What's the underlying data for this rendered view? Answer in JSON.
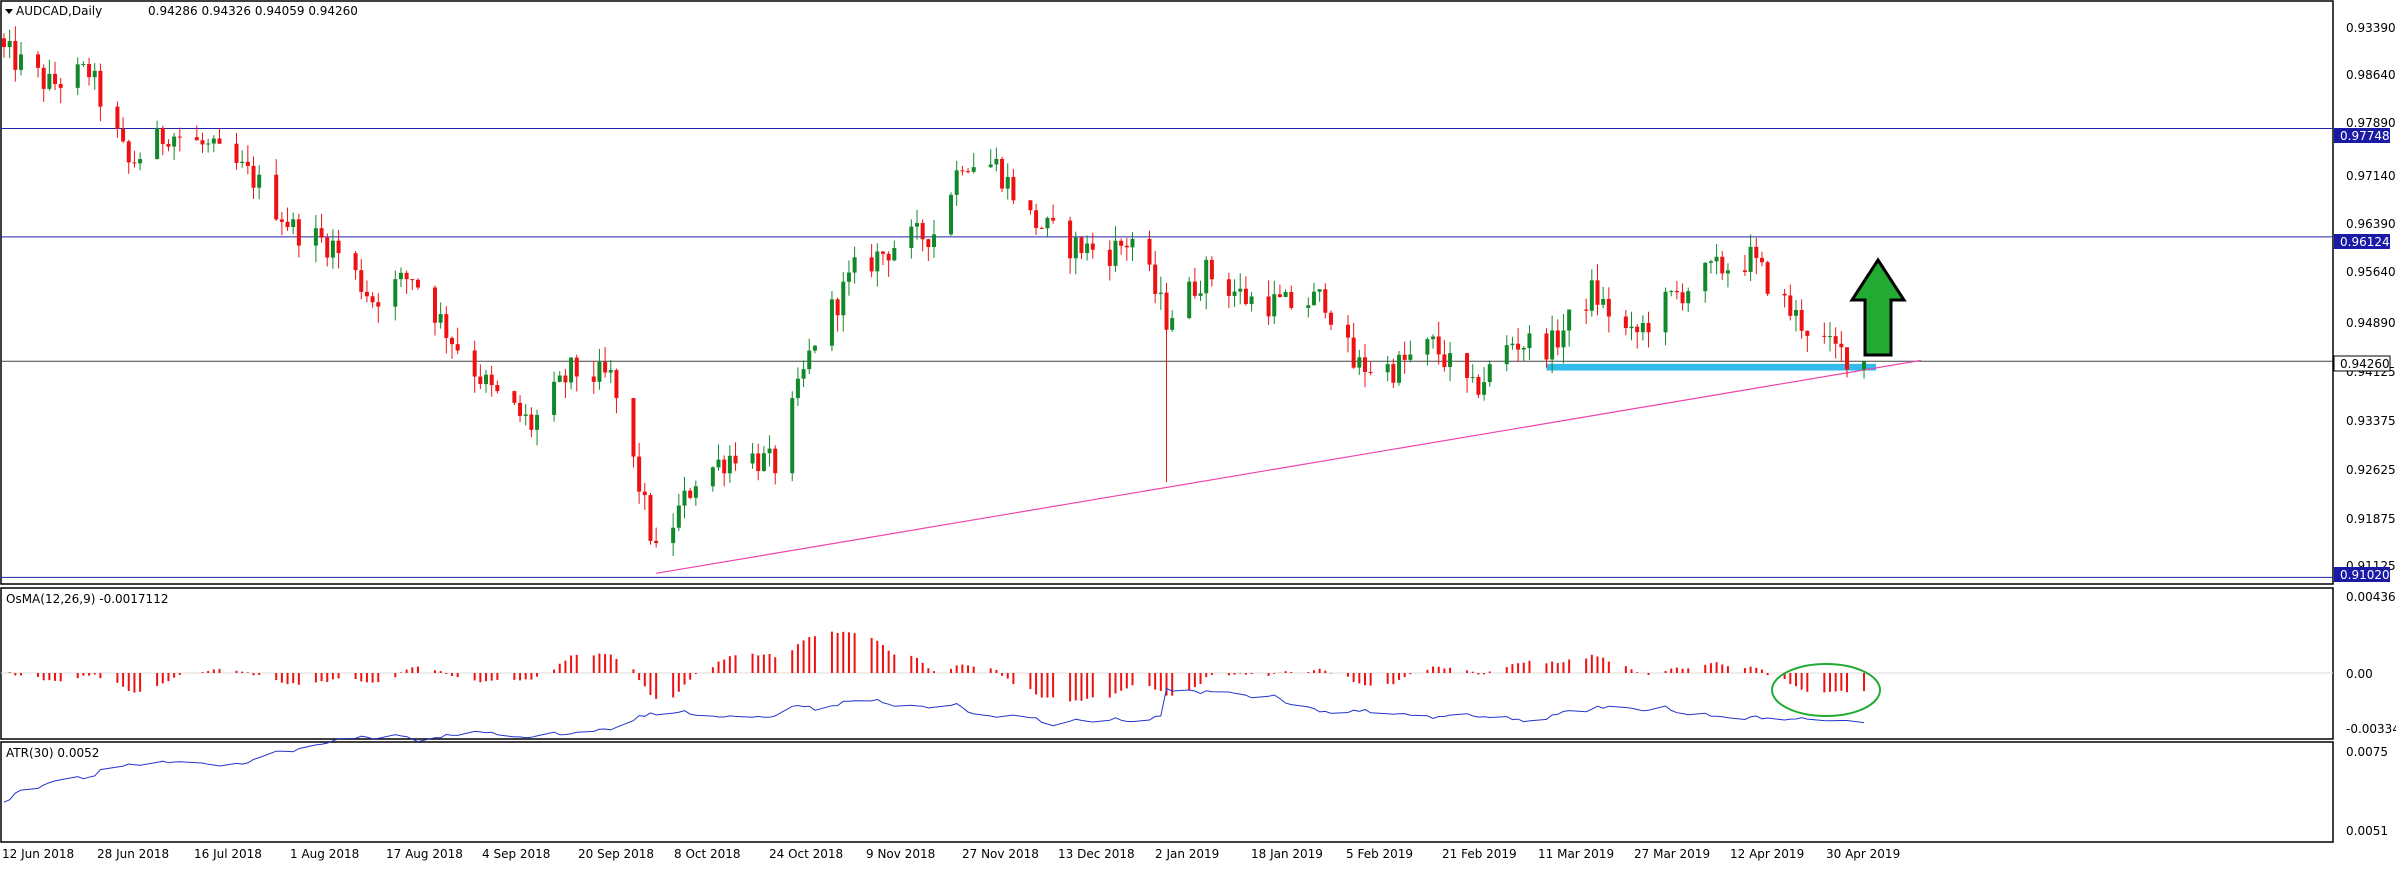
{
  "main_panel": {
    "symbol": "AUDCAD,Daily",
    "ohlc": "0.94286 0.94326 0.94059 0.94260",
    "price_ticks": [
      "0.93390",
      "0.98640",
      "0.97890",
      "0.97140",
      "0.96390",
      "0.95640",
      "0.94890",
      "0.94125",
      "0.93375",
      "0.92625",
      "0.91875",
      "0.91125"
    ],
    "levels": [
      {
        "label": "0.97748",
        "value": 0.97748,
        "color": "#2222aa"
      },
      {
        "label": "0.96124",
        "value": 0.96124,
        "color": "#2222aa"
      },
      {
        "label": "0.91020",
        "value": 0.9102,
        "color": "#2222aa"
      }
    ],
    "current_price": {
      "label": "0.94260",
      "value": 0.9426
    },
    "support_zone": {
      "from": "2019-03-11",
      "to": "2019-05-06",
      "low": 0.9412,
      "high": 0.9422,
      "color": "#33bbee"
    },
    "trendline": {
      "start": {
        "date": "2018-10-05",
        "price": 0.9108
      },
      "end": {
        "date": "2019-05-09",
        "price": 0.9428
      },
      "color": "#ee44aa"
    },
    "arrow": {
      "direction": "up",
      "color": "#22aa33"
    }
  },
  "osma_panel": {
    "label": "OsMA(12,26,9) -0.0017112",
    "ticks": [
      "0.0043631",
      "0.00",
      "-0.0033465"
    ]
  },
  "atr_panel": {
    "label": "ATR(30) 0.0052",
    "ticks": [
      "0.0075",
      "0.0051"
    ]
  },
  "x_axis": {
    "labels": [
      "12 Jun 2018",
      "28 Jun 2018",
      "16 Jul 2018",
      "1 Aug 2018",
      "17 Aug 2018",
      "4 Sep 2018",
      "20 Sep 2018",
      "8 Oct 2018",
      "24 Oct 2018",
      "9 Nov 2018",
      "27 Nov 2018",
      "13 Dec 2018",
      "2 Jan 2019",
      "18 Jan 2019",
      "5 Feb 2019",
      "21 Feb 2019",
      "11 Mar 2019",
      "27 Mar 2019",
      "12 Apr 2019",
      "30 Apr 2019"
    ]
  },
  "chart_data": {
    "type": "candlestick",
    "title": "AUDCAD,Daily",
    "ylim": [
      0.9092,
      0.9966
    ],
    "candles_close_path": [
      {
        "date": "2018-06-12",
        "close": 0.989
      },
      {
        "date": "2018-06-20",
        "close": 0.984
      },
      {
        "date": "2018-06-27",
        "close": 0.986
      },
      {
        "date": "2018-07-04",
        "close": 0.972
      },
      {
        "date": "2018-07-11",
        "close": 0.977
      },
      {
        "date": "2018-07-18",
        "close": 0.9745
      },
      {
        "date": "2018-07-26",
        "close": 0.97
      },
      {
        "date": "2018-08-02",
        "close": 0.9625
      },
      {
        "date": "2018-08-09",
        "close": 0.96
      },
      {
        "date": "2018-08-16",
        "close": 0.952
      },
      {
        "date": "2018-08-23",
        "close": 0.9555
      },
      {
        "date": "2018-08-30",
        "close": 0.946
      },
      {
        "date": "2018-09-06",
        "close": 0.938
      },
      {
        "date": "2018-09-13",
        "close": 0.933
      },
      {
        "date": "2018-09-20",
        "close": 0.941
      },
      {
        "date": "2018-09-27",
        "close": 0.94
      },
      {
        "date": "2018-10-02",
        "close": 0.924
      },
      {
        "date": "2018-10-05",
        "close": 0.9135
      },
      {
        "date": "2018-10-12",
        "close": 0.925
      },
      {
        "date": "2018-10-19",
        "close": 0.929
      },
      {
        "date": "2018-10-26",
        "close": 0.927
      },
      {
        "date": "2018-11-02",
        "close": 0.946
      },
      {
        "date": "2018-11-09",
        "close": 0.956
      },
      {
        "date": "2018-11-16",
        "close": 0.96
      },
      {
        "date": "2018-11-23",
        "close": 0.962
      },
      {
        "date": "2018-11-28",
        "close": 0.973
      },
      {
        "date": "2018-12-04",
        "close": 0.972
      },
      {
        "date": "2018-12-10",
        "close": 0.964
      },
      {
        "date": "2018-12-17",
        "close": 0.96
      },
      {
        "date": "2018-12-24",
        "close": 0.959
      },
      {
        "date": "2018-12-28",
        "close": 0.961
      },
      {
        "date": "2019-01-03",
        "close": 0.949
      },
      {
        "date": "2019-01-10",
        "close": 0.956
      },
      {
        "date": "2019-01-17",
        "close": 0.952
      },
      {
        "date": "2019-01-24",
        "close": 0.951
      },
      {
        "date": "2019-01-31",
        "close": 0.952
      },
      {
        "date": "2019-02-05",
        "close": 0.942
      },
      {
        "date": "2019-02-12",
        "close": 0.9415
      },
      {
        "date": "2019-02-19",
        "close": 0.945
      },
      {
        "date": "2019-02-26",
        "close": 0.938
      },
      {
        "date": "2019-03-05",
        "close": 0.9455
      },
      {
        "date": "2019-03-12",
        "close": 0.945
      },
      {
        "date": "2019-03-19",
        "close": 0.953
      },
      {
        "date": "2019-03-26",
        "close": 0.946
      },
      {
        "date": "2019-04-02",
        "close": 0.952
      },
      {
        "date": "2019-04-09",
        "close": 0.956
      },
      {
        "date": "2019-04-16",
        "close": 0.958
      },
      {
        "date": "2019-04-23",
        "close": 0.95
      },
      {
        "date": "2019-04-30",
        "close": 0.9445
      },
      {
        "date": "2019-05-06",
        "close": 0.9426
      }
    ]
  }
}
